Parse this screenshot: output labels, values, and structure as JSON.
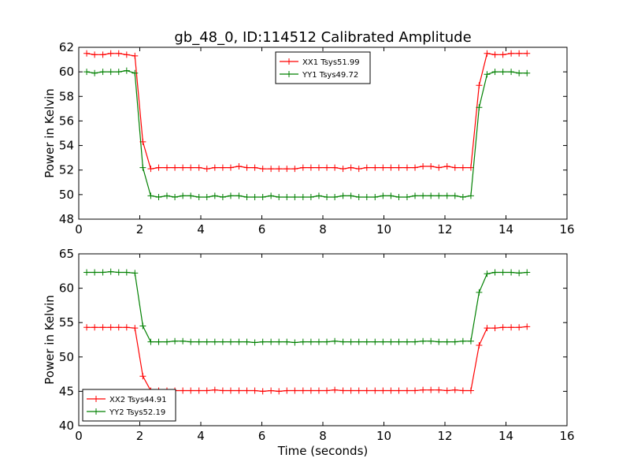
{
  "figure": {
    "title": "gb_48_0, ID:114512 Calibrated Amplitude"
  },
  "chart_data": [
    {
      "type": "line",
      "title": "gb_48_0, ID:114512 Calibrated Amplitude",
      "xlabel": "",
      "ylabel": "Power in Kelvin",
      "xlim": [
        0,
        16
      ],
      "ylim": [
        48,
        62
      ],
      "xticks": [
        0,
        2,
        4,
        6,
        8,
        10,
        12,
        14,
        16
      ],
      "yticks": [
        48,
        50,
        52,
        54,
        56,
        58,
        60,
        62
      ],
      "grid": false,
      "legend_position": "upper-center",
      "x": [
        0.26,
        0.52,
        0.79,
        1.05,
        1.31,
        1.57,
        1.84,
        2.1,
        2.36,
        2.62,
        2.89,
        3.15,
        3.41,
        3.67,
        3.94,
        4.2,
        4.46,
        4.72,
        4.98,
        5.25,
        5.51,
        5.77,
        6.03,
        6.3,
        6.56,
        6.82,
        7.08,
        7.35,
        7.61,
        7.87,
        8.13,
        8.39,
        8.66,
        8.92,
        9.18,
        9.44,
        9.71,
        9.97,
        10.23,
        10.49,
        10.76,
        11.02,
        11.28,
        11.54,
        11.8,
        12.07,
        12.33,
        12.59,
        12.85,
        13.12,
        13.38,
        13.64,
        13.9,
        14.17,
        14.43,
        14.69
      ],
      "series": [
        {
          "name": "XX1 Tsys51.99",
          "color": "#ff0000",
          "values": [
            61.5,
            61.4,
            61.4,
            61.5,
            61.5,
            61.4,
            61.3,
            54.3,
            52.1,
            52.2,
            52.2,
            52.2,
            52.2,
            52.2,
            52.2,
            52.1,
            52.2,
            52.2,
            52.2,
            52.3,
            52.2,
            52.2,
            52.1,
            52.1,
            52.1,
            52.1,
            52.1,
            52.2,
            52.2,
            52.2,
            52.2,
            52.2,
            52.1,
            52.2,
            52.1,
            52.2,
            52.2,
            52.2,
            52.2,
            52.2,
            52.2,
            52.2,
            52.3,
            52.3,
            52.2,
            52.3,
            52.2,
            52.2,
            52.2,
            58.9,
            61.5,
            61.4,
            61.4,
            61.5,
            61.5,
            61.5
          ]
        },
        {
          "name": "YY1 Tsys49.72",
          "color": "#008000",
          "values": [
            60.0,
            59.9,
            60.0,
            60.0,
            60.0,
            60.1,
            59.9,
            52.2,
            49.9,
            49.8,
            49.9,
            49.8,
            49.9,
            49.9,
            49.8,
            49.8,
            49.9,
            49.8,
            49.9,
            49.9,
            49.8,
            49.8,
            49.8,
            49.9,
            49.8,
            49.8,
            49.8,
            49.8,
            49.8,
            49.9,
            49.8,
            49.8,
            49.9,
            49.9,
            49.8,
            49.8,
            49.8,
            49.9,
            49.9,
            49.8,
            49.8,
            49.9,
            49.9,
            49.9,
            49.9,
            49.9,
            49.9,
            49.8,
            49.9,
            57.1,
            59.8,
            60.0,
            60.0,
            60.0,
            59.9,
            59.9
          ]
        }
      ]
    },
    {
      "type": "line",
      "title": "",
      "xlabel": "Time (seconds)",
      "ylabel": "Power in Kelvin",
      "xlim": [
        0,
        16
      ],
      "ylim": [
        40,
        65
      ],
      "xticks": [
        0,
        2,
        4,
        6,
        8,
        10,
        12,
        14,
        16
      ],
      "yticks": [
        40,
        45,
        50,
        55,
        60,
        65
      ],
      "grid": false,
      "legend_position": "lower-left",
      "x": [
        0.26,
        0.52,
        0.79,
        1.05,
        1.31,
        1.57,
        1.84,
        2.1,
        2.36,
        2.62,
        2.89,
        3.15,
        3.41,
        3.67,
        3.94,
        4.2,
        4.46,
        4.72,
        4.98,
        5.25,
        5.51,
        5.77,
        6.03,
        6.3,
        6.56,
        6.82,
        7.08,
        7.35,
        7.61,
        7.87,
        8.13,
        8.39,
        8.66,
        8.92,
        9.18,
        9.44,
        9.71,
        9.97,
        10.23,
        10.49,
        10.76,
        11.02,
        11.28,
        11.54,
        11.8,
        12.07,
        12.33,
        12.59,
        12.85,
        13.12,
        13.38,
        13.64,
        13.9,
        14.17,
        14.43,
        14.69
      ],
      "series": [
        {
          "name": "XX2 Tsys44.91",
          "color": "#ff0000",
          "values": [
            54.3,
            54.3,
            54.3,
            54.3,
            54.3,
            54.3,
            54.2,
            47.2,
            45.1,
            45.1,
            45.1,
            45.1,
            45.1,
            45.1,
            45.1,
            45.1,
            45.2,
            45.1,
            45.1,
            45.1,
            45.1,
            45.1,
            45.0,
            45.1,
            45.0,
            45.1,
            45.1,
            45.1,
            45.1,
            45.1,
            45.1,
            45.2,
            45.1,
            45.1,
            45.1,
            45.1,
            45.1,
            45.1,
            45.1,
            45.1,
            45.1,
            45.1,
            45.2,
            45.2,
            45.2,
            45.1,
            45.2,
            45.1,
            45.1,
            51.7,
            54.2,
            54.2,
            54.3,
            54.3,
            54.3,
            54.4
          ]
        },
        {
          "name": "YY2 Tsys52.19",
          "color": "#008000",
          "values": [
            62.3,
            62.3,
            62.3,
            62.4,
            62.3,
            62.3,
            62.2,
            54.5,
            52.2,
            52.2,
            52.2,
            52.3,
            52.3,
            52.2,
            52.2,
            52.2,
            52.2,
            52.2,
            52.2,
            52.2,
            52.2,
            52.1,
            52.2,
            52.2,
            52.2,
            52.2,
            52.1,
            52.2,
            52.2,
            52.2,
            52.2,
            52.3,
            52.2,
            52.2,
            52.2,
            52.2,
            52.2,
            52.2,
            52.2,
            52.2,
            52.2,
            52.2,
            52.3,
            52.3,
            52.2,
            52.2,
            52.2,
            52.3,
            52.3,
            59.4,
            62.1,
            62.3,
            62.3,
            62.3,
            62.2,
            62.3
          ]
        }
      ]
    }
  ]
}
